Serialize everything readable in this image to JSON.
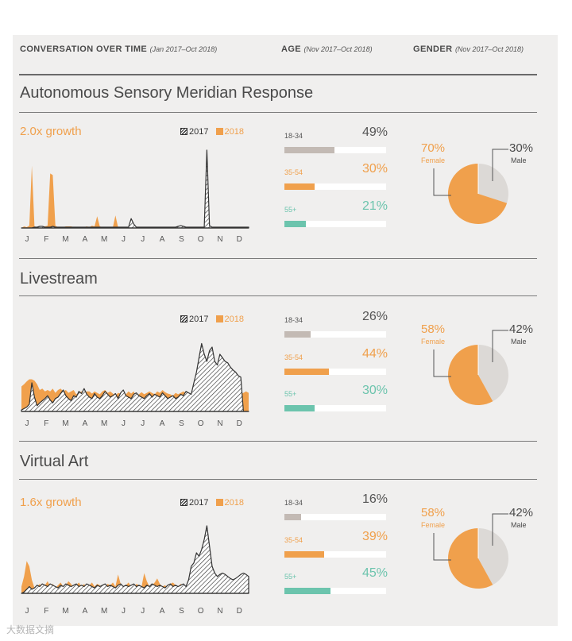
{
  "header": {
    "conversation": {
      "title": "CONVERSATION OVER TIME",
      "range": "(Jan 2017–Oct 2018)"
    },
    "age": {
      "title": "AGE",
      "range": "(Nov 2017–Oct 2018)"
    },
    "gender": {
      "title": "GENDER",
      "range": "(Nov 2017–Oct 2018)"
    }
  },
  "legend": {
    "y2017": "2017",
    "y2018": "2018"
  },
  "colors": {
    "accent": "#f0a04c",
    "age_18_34": "#c3bab4",
    "age_35_54": "#f0a04c",
    "age_55": "#6cc4ad",
    "male": "#dcd9d6",
    "female": "#f0a04c"
  },
  "watermark": "大数据文摘",
  "sections": [
    {
      "title": "Autonomous Sensory Meridian Response",
      "growth": "2.0x growth",
      "chart_data": {
        "type": "area",
        "title": "Conversation over time",
        "xlabel": "",
        "ylabel": "",
        "month_ticks": [
          "J",
          "F",
          "M",
          "A",
          "M",
          "J",
          "J",
          "A",
          "S",
          "O",
          "N",
          "D"
        ],
        "ylim": [
          0,
          100
        ],
        "series": [
          {
            "name": "2018",
            "style": "solid-orange",
            "values": [
              0,
              2,
              1,
              3,
              80,
              2,
              1,
              1,
              1,
              2,
              3,
              70,
              68,
              3,
              1,
              1,
              1,
              2,
              2,
              2,
              1,
              1,
              1,
              1,
              1,
              2,
              1,
              3,
              2,
              15,
              2,
              1,
              1,
              1,
              1,
              1,
              16,
              1,
              1,
              1,
              1,
              1,
              1,
              1,
              1,
              1,
              1,
              1,
              1,
              1,
              1,
              1,
              1,
              1,
              1,
              1,
              1,
              1,
              1,
              1,
              1,
              1,
              0,
              0,
              0,
              0,
              0,
              0,
              0,
              0,
              0,
              0,
              0,
              0,
              0,
              0,
              0,
              0,
              0,
              0,
              0,
              0,
              0,
              0,
              0,
              0,
              0,
              0
            ]
          },
          {
            "name": "2017",
            "style": "hatched",
            "values": [
              0,
              0,
              0,
              0,
              0,
              1,
              1,
              2,
              2,
              1,
              1,
              1,
              2,
              1,
              1,
              1,
              1,
              1,
              1,
              1,
              1,
              1,
              1,
              1,
              1,
              1,
              1,
              1,
              1,
              1,
              1,
              1,
              1,
              1,
              1,
              1,
              1,
              1,
              1,
              1,
              1,
              1,
              12,
              5,
              1,
              1,
              1,
              1,
              1,
              1,
              1,
              1,
              1,
              1,
              1,
              1,
              1,
              1,
              1,
              1,
              2,
              3,
              2,
              1,
              1,
              1,
              1,
              1,
              1,
              1,
              1,
              100,
              3,
              1,
              1,
              1,
              1,
              1,
              1,
              1,
              1,
              1,
              1,
              1,
              1,
              1,
              1,
              1
            ]
          }
        ]
      },
      "age": [
        {
          "label": "18-34",
          "pct": "49%",
          "value": 0.49,
          "key": "age_18_34"
        },
        {
          "label": "35-54",
          "pct": "30%",
          "value": 0.3,
          "key": "age_35_54"
        },
        {
          "label": "55+",
          "pct": "21%",
          "value": 0.21,
          "key": "age_55"
        }
      ],
      "gender": {
        "female_pct": "70%",
        "female_label": "Female",
        "female_value": 0.7,
        "male_pct": "30%",
        "male_label": "Male",
        "male_value": 0.3
      }
    },
    {
      "title": "Livestream",
      "growth": "",
      "chart_data": {
        "type": "area",
        "title": "Conversation over time",
        "xlabel": "",
        "ylabel": "",
        "month_ticks": [
          "J",
          "F",
          "M",
          "A",
          "M",
          "J",
          "J",
          "A",
          "S",
          "O",
          "N",
          "D"
        ],
        "ylim": [
          0,
          100
        ],
        "series": [
          {
            "name": "2018",
            "style": "solid-orange",
            "values": [
              35,
              38,
              42,
              45,
              45,
              43,
              38,
              30,
              32,
              28,
              30,
              28,
              32,
              26,
              30,
              32,
              28,
              30,
              26,
              28,
              30,
              24,
              26,
              28,
              26,
              28,
              28,
              25,
              28,
              26,
              24,
              28,
              30,
              26,
              28,
              25,
              22,
              26,
              25,
              27,
              24,
              28,
              25,
              28,
              20,
              24,
              27,
              24,
              26,
              28,
              26,
              24,
              28,
              26,
              30,
              27,
              25,
              24,
              22,
              26,
              24,
              26,
              28,
              26,
              22,
              20,
              28,
              55,
              30,
              25,
              24,
              26,
              28,
              30,
              28,
              26,
              30,
              28,
              26,
              25,
              28,
              26,
              27,
              26,
              24,
              26,
              28,
              26
            ]
          },
          {
            "name": "2017",
            "style": "hatched",
            "values": [
              2,
              4,
              6,
              10,
              40,
              20,
              8,
              12,
              15,
              18,
              22,
              16,
              12,
              18,
              20,
              25,
              30,
              22,
              18,
              15,
              22,
              20,
              28,
              25,
              32,
              24,
              20,
              18,
              25,
              20,
              18,
              22,
              28,
              24,
              20,
              22,
              25,
              18,
              26,
              30,
              22,
              20,
              18,
              24,
              26,
              22,
              20,
              18,
              22,
              25,
              20,
              24,
              22,
              20,
              26,
              22,
              18,
              20,
              22,
              18,
              20,
              24,
              22,
              28,
              26,
              24,
              40,
              55,
              75,
              95,
              80,
              70,
              85,
              90,
              70,
              65,
              80,
              75,
              70,
              68,
              62,
              58,
              55,
              50,
              48,
              0,
              0,
              0
            ]
          }
        ]
      },
      "age": [
        {
          "label": "18-34",
          "pct": "26%",
          "value": 0.26,
          "key": "age_18_34"
        },
        {
          "label": "35-54",
          "pct": "44%",
          "value": 0.44,
          "key": "age_35_54"
        },
        {
          "label": "55+",
          "pct": "30%",
          "value": 0.3,
          "key": "age_55"
        }
      ],
      "gender": {
        "female_pct": "58%",
        "female_label": "Female",
        "female_value": 0.58,
        "male_pct": "42%",
        "male_label": "Male",
        "male_value": 0.42
      }
    },
    {
      "title": "Virtual Art",
      "growth": "1.6x growth",
      "chart_data": {
        "type": "area",
        "title": "Conversation over time",
        "xlabel": "",
        "ylabel": "",
        "month_ticks": [
          "J",
          "F",
          "M",
          "A",
          "M",
          "J",
          "J",
          "A",
          "S",
          "O",
          "N",
          "D"
        ],
        "ylim": [
          0,
          100
        ],
        "series": [
          {
            "name": "2018",
            "style": "solid-orange",
            "values": [
              10,
              25,
              48,
              40,
              20,
              8,
              10,
              14,
              8,
              12,
              18,
              10,
              14,
              8,
              12,
              16,
              10,
              12,
              18,
              14,
              8,
              12,
              16,
              10,
              14,
              8,
              12,
              16,
              10,
              14,
              12,
              8,
              10,
              14,
              12,
              16,
              10,
              28,
              14,
              10,
              12,
              16,
              10,
              8,
              14,
              12,
              10,
              30,
              18,
              10,
              12,
              16,
              22,
              14,
              10,
              12,
              8,
              14,
              16,
              12,
              10,
              14,
              12,
              10,
              14,
              16,
              12,
              10,
              14,
              12,
              10,
              12,
              14,
              10,
              12,
              14,
              10,
              12,
              14,
              10,
              12,
              14,
              10,
              12,
              10,
              8,
              10,
              12
            ]
          },
          {
            "name": "2017",
            "style": "hatched",
            "values": [
              0,
              2,
              6,
              10,
              6,
              8,
              12,
              10,
              14,
              12,
              10,
              14,
              12,
              10,
              8,
              12,
              10,
              14,
              12,
              10,
              12,
              14,
              10,
              12,
              10,
              14,
              12,
              10,
              8,
              12,
              10,
              12,
              14,
              10,
              12,
              10,
              8,
              12,
              14,
              10,
              12,
              10,
              12,
              14,
              10,
              12,
              10,
              8,
              12,
              10,
              14,
              12,
              10,
              12,
              10,
              8,
              12,
              14,
              10,
              12,
              10,
              12,
              14,
              10,
              20,
              40,
              45,
              60,
              55,
              65,
              80,
              100,
              70,
              40,
              30,
              25,
              28,
              30,
              28,
              25,
              22,
              20,
              22,
              25,
              28,
              30,
              28,
              25
            ]
          }
        ]
      },
      "age": [
        {
          "label": "18-34",
          "pct": "16%",
          "value": 0.16,
          "key": "age_18_34"
        },
        {
          "label": "35-54",
          "pct": "39%",
          "value": 0.39,
          "key": "age_35_54"
        },
        {
          "label": "55+",
          "pct": "45%",
          "value": 0.45,
          "key": "age_55"
        }
      ],
      "gender": {
        "female_pct": "58%",
        "female_label": "Female",
        "female_value": 0.58,
        "male_pct": "42%",
        "male_label": "Male",
        "male_value": 0.42
      }
    }
  ]
}
